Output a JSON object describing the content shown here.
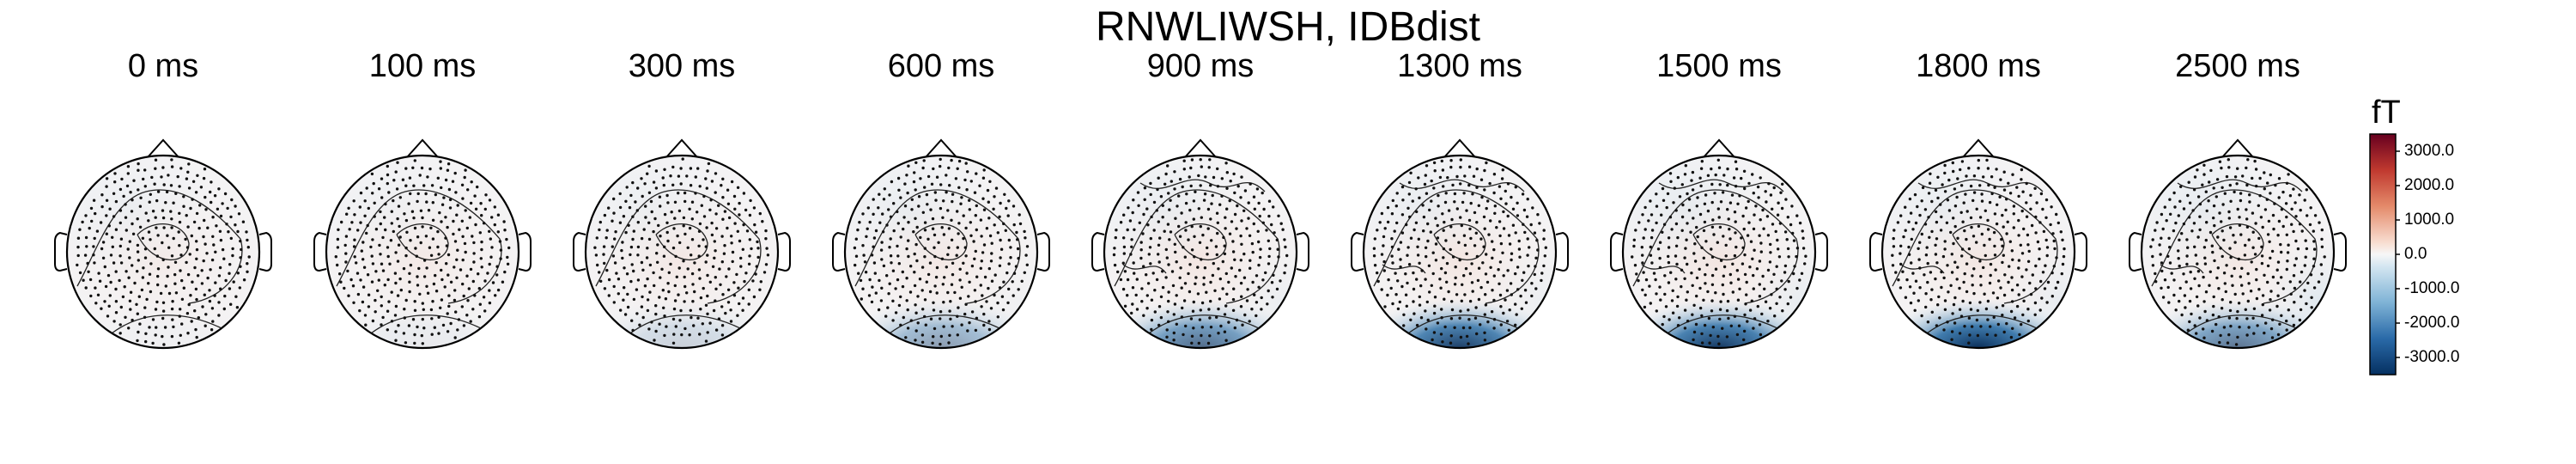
{
  "title": "RNWLIWSH, IDBdist",
  "chart_data": {
    "type": "heatmap",
    "title": "RNWLIWSH, IDBdist",
    "description_kind": "topomap",
    "panels": [
      {
        "label": "0 ms",
        "blue_front": 0.05,
        "red_center": 0.18,
        "blue_back": 0.02,
        "blue_back_right": 0.0
      },
      {
        "label": "100 ms",
        "blue_front": 0.0,
        "red_center": 0.22,
        "blue_back": 0.05,
        "blue_back_right": 0.0
      },
      {
        "label": "300 ms",
        "blue_front": 0.05,
        "red_center": 0.25,
        "blue_back": 0.18,
        "blue_back_right": 0.0
      },
      {
        "label": "600 ms",
        "blue_front": 0.1,
        "red_center": 0.25,
        "blue_back": 0.45,
        "blue_back_right": 0.05
      },
      {
        "label": "900 ms",
        "blue_front": 0.1,
        "red_center": 0.3,
        "blue_back": 0.7,
        "blue_back_right": 0.1
      },
      {
        "label": "1300 ms",
        "blue_front": 0.1,
        "red_center": 0.3,
        "blue_back": 0.92,
        "blue_back_right": 0.1
      },
      {
        "label": "1500 ms",
        "blue_front": 0.15,
        "red_center": 0.3,
        "blue_back": 0.95,
        "blue_back_right": 0.15
      },
      {
        "label": "1800 ms",
        "blue_front": 0.1,
        "red_center": 0.28,
        "blue_back": 1.0,
        "blue_back_right": 0.15
      },
      {
        "label": "2500 ms",
        "blue_front": 0.15,
        "red_center": 0.25,
        "blue_back": 0.65,
        "blue_back_right": 0.25
      }
    ],
    "colorbar": {
      "unit": "fT",
      "range": [
        -3500,
        3500
      ],
      "ticks": [
        "3000.0",
        "2000.0",
        "1000.0",
        "0.0",
        "-1000.0",
        "-2000.0",
        "-3000.0"
      ],
      "tick_values": [
        3000,
        2000,
        1000,
        0,
        -1000,
        -2000,
        -3000
      ],
      "colormap": "RdBu_r"
    }
  }
}
